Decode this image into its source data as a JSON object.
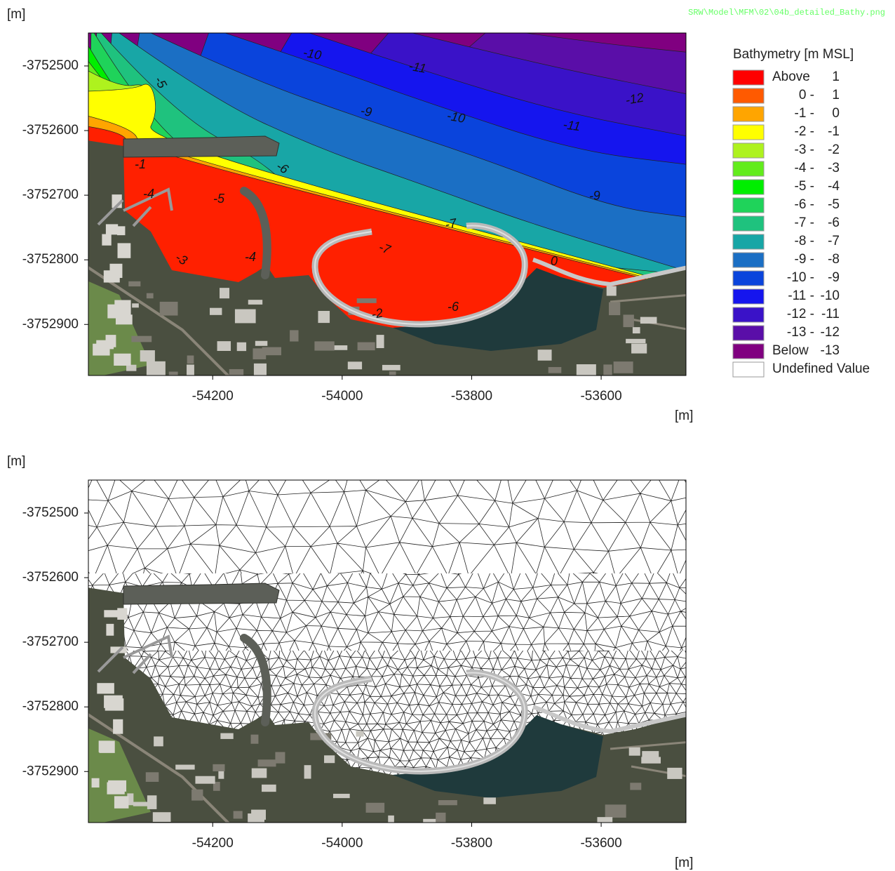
{
  "file_path": "SRW\\Model\\MFM\\02\\04b_detailed_Bathy.png",
  "panels": [
    {
      "type": "contour",
      "y_unit": "[m]",
      "x_unit": "[m]",
      "xlim": [
        -54392,
        -53469
      ],
      "ylim": [
        -3752979,
        -3752449
      ],
      "xticks": [
        -54200,
        -54000,
        -53800,
        -53600
      ],
      "yticks": [
        -3752500,
        -3752600,
        -3752700,
        -3752800,
        -3752900
      ],
      "contour_labels": [
        "-10",
        "-11",
        "-12",
        "-9",
        "-10",
        "-11",
        "-9",
        "-5",
        "-1",
        "-6",
        "-4",
        "-5",
        "-7",
        "-7",
        "-3",
        "-4",
        "0",
        "-2",
        "-6"
      ]
    },
    {
      "type": "mesh",
      "y_unit": "[m]",
      "x_unit": "[m]",
      "xlim": [
        -54392,
        -53469
      ],
      "ylim": [
        -3752979,
        -3752449
      ],
      "xticks": [
        -54200,
        -54000,
        -53800,
        -53600
      ],
      "yticks": [
        -3752500,
        -3752600,
        -3752700,
        -3752800,
        -3752900
      ]
    }
  ],
  "legend": {
    "title": "Bathymetry [m MSL]",
    "items": [
      {
        "color": "#ff0000",
        "label": "Above",
        "bound": "1"
      },
      {
        "color": "#ff5a00",
        "range": "0 -",
        "bound": "1"
      },
      {
        "color": "#ffa500",
        "range": "-1 -",
        "bound": "0"
      },
      {
        "color": "#ffff00",
        "range": "-2 -",
        "bound": "-1"
      },
      {
        "color": "#aef21e",
        "range": "-3 -",
        "bound": "-2"
      },
      {
        "color": "#62ec1c",
        "range": "-4 -",
        "bound": "-3"
      },
      {
        "color": "#00ee00",
        "range": "-5 -",
        "bound": "-4"
      },
      {
        "color": "#1fd35a",
        "range": "-6 -",
        "bound": "-5"
      },
      {
        "color": "#1fc27e",
        "range": "-7 -",
        "bound": "-6"
      },
      {
        "color": "#18a6a6",
        "range": "-8 -",
        "bound": "-7"
      },
      {
        "color": "#1b6fc4",
        "range": "-9 -",
        "bound": "-8"
      },
      {
        "color": "#0a44dc",
        "range": "-10 -",
        "bound": "-9"
      },
      {
        "color": "#1515ee",
        "range": "-11 -",
        "bound": "-10"
      },
      {
        "color": "#3a12c8",
        "range": "-12 -",
        "bound": "-11"
      },
      {
        "color": "#5a0ea8",
        "range": "-13 -",
        "bound": "-12"
      },
      {
        "color": "#800080",
        "label": "Below",
        "bound": "-13"
      },
      {
        "color": "#ffffff",
        "label": "Undefined Value"
      }
    ]
  }
}
